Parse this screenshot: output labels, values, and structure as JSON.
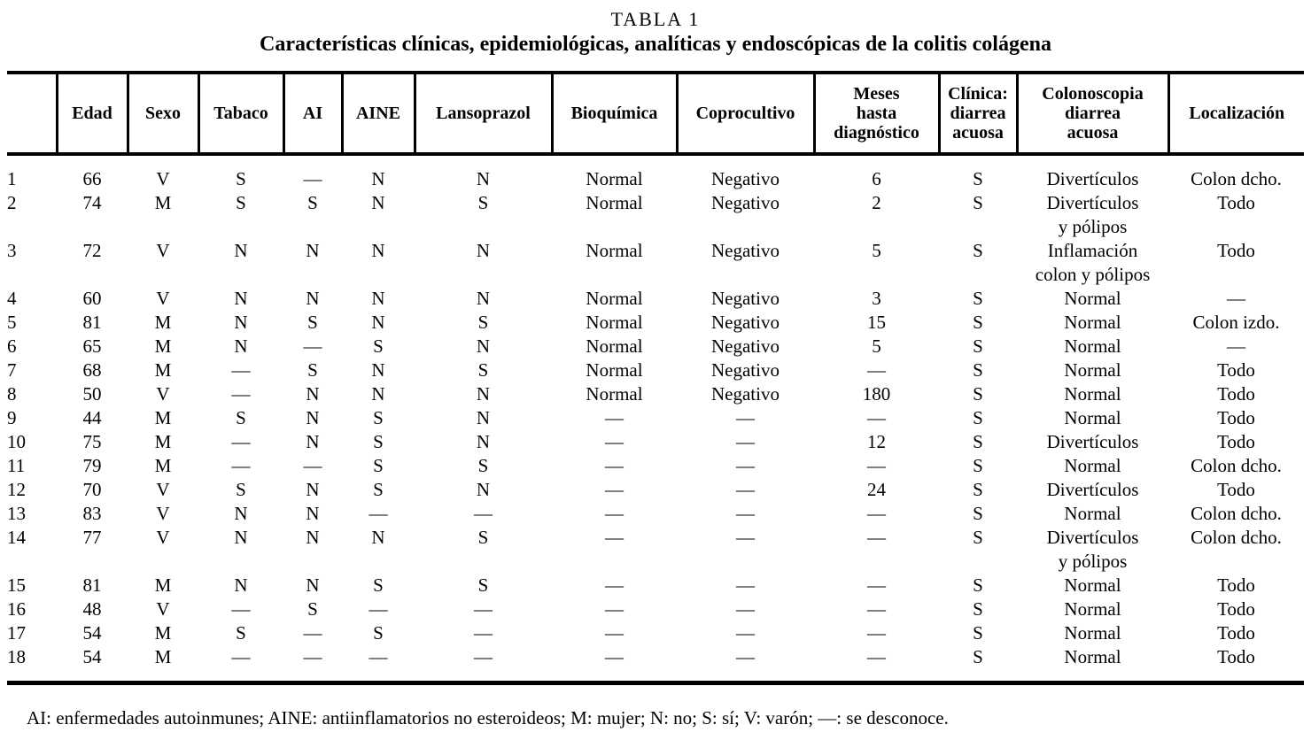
{
  "caption": {
    "label": "TABLA 1",
    "heading": "Características clínicas, epidemiológicas, analíticas y endoscópicas de la colitis colágena"
  },
  "table": {
    "columns": [
      "",
      "Edad",
      "Sexo",
      "Tabaco",
      "AI",
      "AINE",
      "Lansoprazol",
      "Bioquímica",
      "Coprocultivo",
      "Meses\nhasta\ndiagnóstico",
      "Clínica:\ndiarrea\nacuosa",
      "Colonoscopia\ndiarrea\nacuosa",
      "Localización"
    ],
    "rows": [
      [
        "1",
        "66",
        "V",
        "S",
        "—",
        "N",
        "N",
        "Normal",
        "Negativo",
        "6",
        "S",
        "Divertículos",
        "Colon dcho."
      ],
      [
        "2",
        "74",
        "M",
        "S",
        "S",
        "N",
        "S",
        "Normal",
        "Negativo",
        "2",
        "S",
        "Divertículos\ny pólipos",
        "Todo"
      ],
      [
        "3",
        "72",
        "V",
        "N",
        "N",
        "N",
        "N",
        "Normal",
        "Negativo",
        "5",
        "S",
        "Inflamación\ncolon y pólipos",
        "Todo"
      ],
      [
        "4",
        "60",
        "V",
        "N",
        "N",
        "N",
        "N",
        "Normal",
        "Negativo",
        "3",
        "S",
        "Normal",
        "—"
      ],
      [
        "5",
        "81",
        "M",
        "N",
        "S",
        "N",
        "S",
        "Normal",
        "Negativo",
        "15",
        "S",
        "Normal",
        "Colon izdo."
      ],
      [
        "6",
        "65",
        "M",
        "N",
        "—",
        "S",
        "N",
        "Normal",
        "Negativo",
        "5",
        "S",
        "Normal",
        "—"
      ],
      [
        "7",
        "68",
        "M",
        "—",
        "S",
        "N",
        "S",
        "Normal",
        "Negativo",
        "—",
        "S",
        "Normal",
        "Todo"
      ],
      [
        "8",
        "50",
        "V",
        "—",
        "N",
        "N",
        "N",
        "Normal",
        "Negativo",
        "180",
        "S",
        "Normal",
        "Todo"
      ],
      [
        "9",
        "44",
        "M",
        "S",
        "N",
        "S",
        "N",
        "—",
        "—",
        "—",
        "S",
        "Normal",
        "Todo"
      ],
      [
        "10",
        "75",
        "M",
        "—",
        "N",
        "S",
        "N",
        "—",
        "—",
        "12",
        "S",
        "Divertículos",
        "Todo"
      ],
      [
        "11",
        "79",
        "M",
        "—",
        "—",
        "S",
        "S",
        "—",
        "—",
        "—",
        "S",
        "Normal",
        "Colon dcho."
      ],
      [
        "12",
        "70",
        "V",
        "S",
        "N",
        "S",
        "N",
        "—",
        "—",
        "24",
        "S",
        "Divertículos",
        "Todo"
      ],
      [
        "13",
        "83",
        "V",
        "N",
        "N",
        "—",
        "—",
        "—",
        "—",
        "—",
        "S",
        "Normal",
        "Colon dcho."
      ],
      [
        "14",
        "77",
        "V",
        "N",
        "N",
        "N",
        "S",
        "—",
        "—",
        "—",
        "S",
        "Divertículos\ny pólipos",
        "Colon dcho."
      ],
      [
        "15",
        "81",
        "M",
        "N",
        "N",
        "S",
        "S",
        "—",
        "—",
        "—",
        "S",
        "Normal",
        "Todo"
      ],
      [
        "16",
        "48",
        "V",
        "—",
        "S",
        "—",
        "—",
        "—",
        "—",
        "—",
        "S",
        "Normal",
        "Todo"
      ],
      [
        "17",
        "54",
        "M",
        "S",
        "—",
        "S",
        "—",
        "—",
        "—",
        "—",
        "S",
        "Normal",
        "Todo"
      ],
      [
        "18",
        "54",
        "M",
        "—",
        "—",
        "—",
        "—",
        "—",
        "—",
        "—",
        "S",
        "Normal",
        "Todo"
      ]
    ]
  },
  "footnote": "AI: enfermedades autoinmunes; AINE: antiinflamatorios no esteroideos; M: mujer; N: no; S: sí; V: varón; —: se desconoce."
}
